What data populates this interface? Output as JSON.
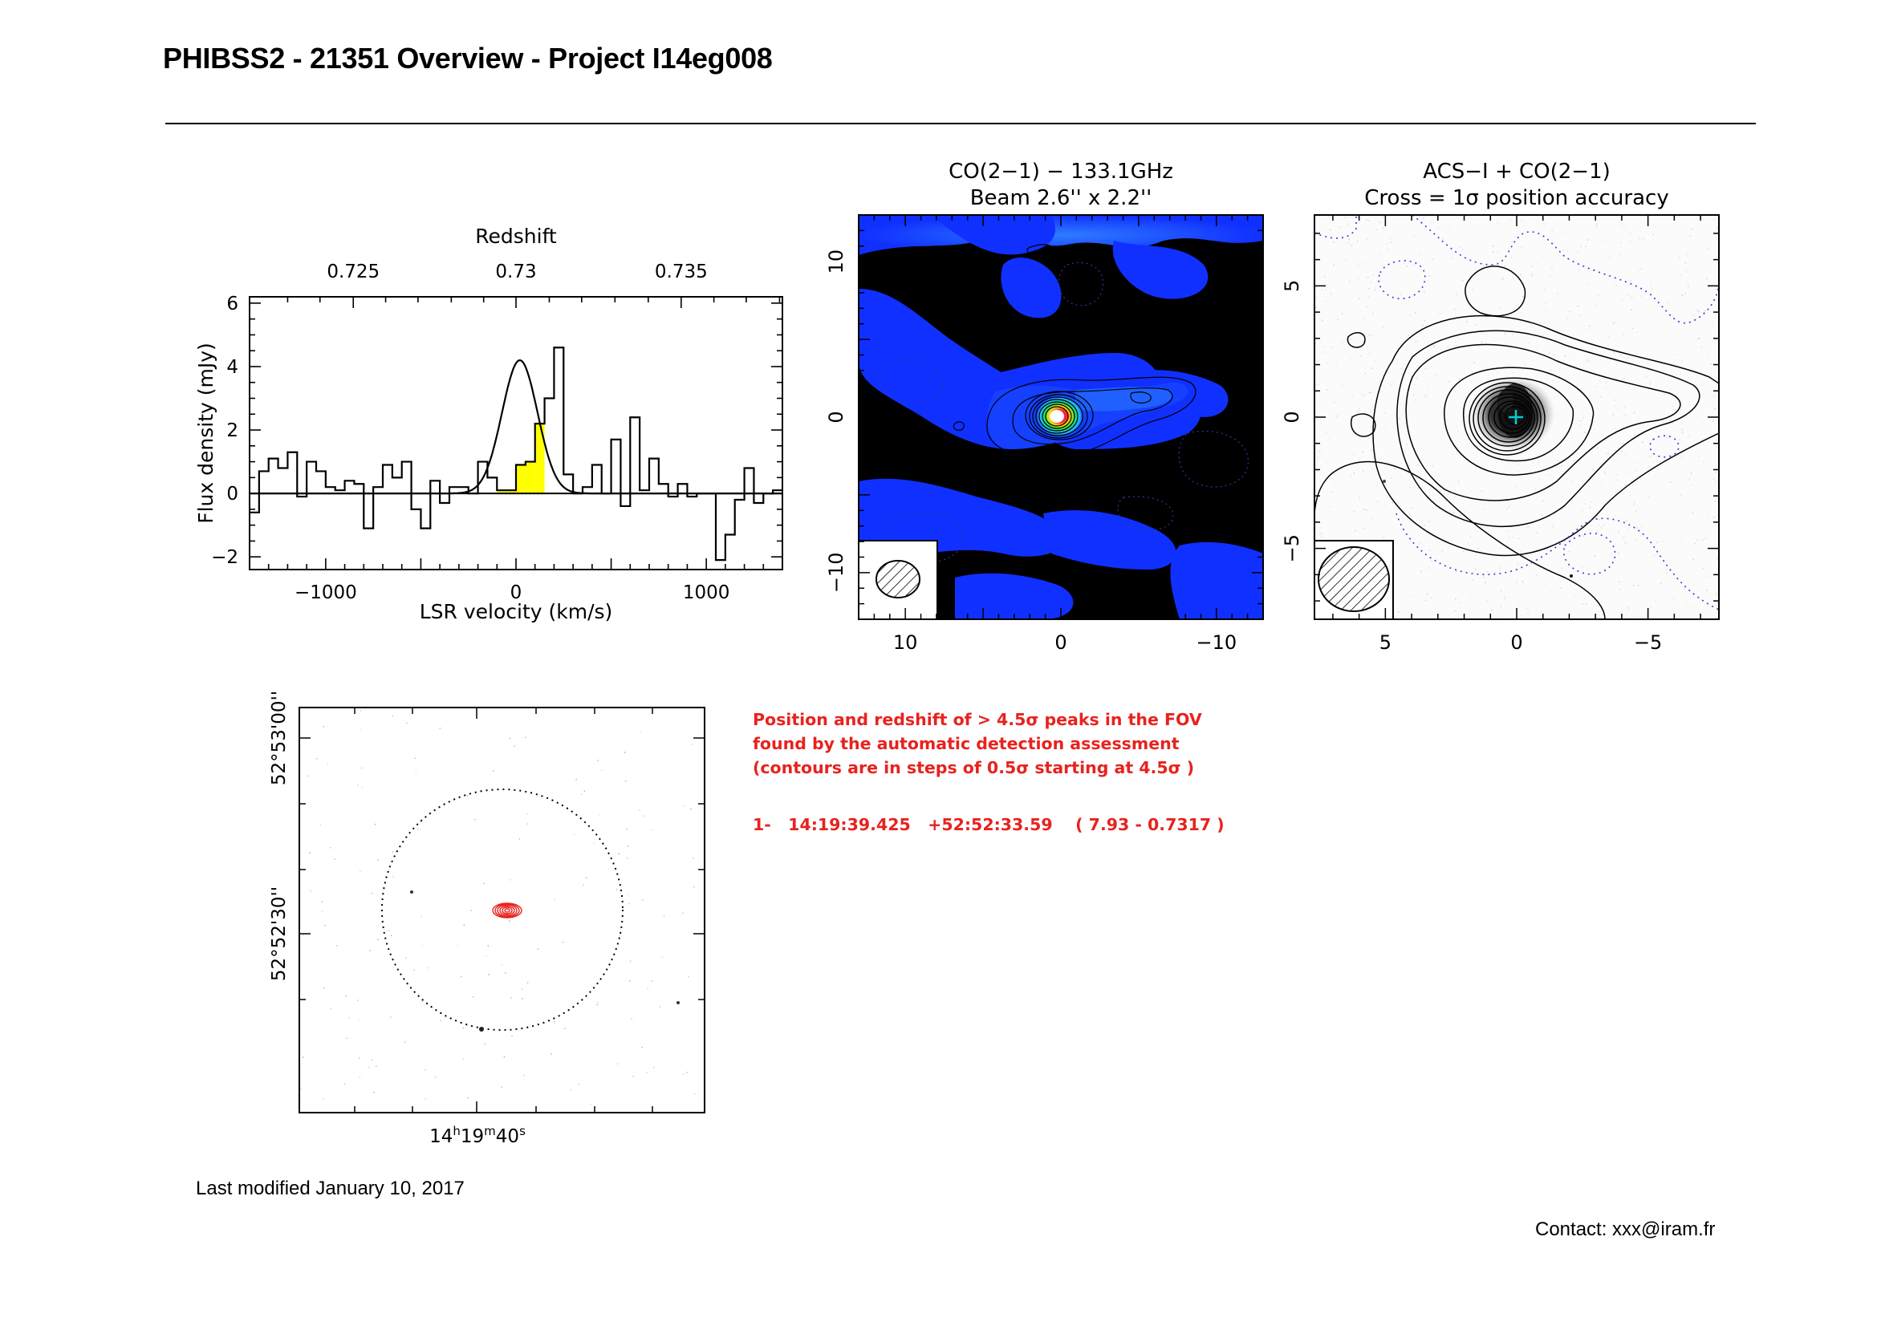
{
  "header": {
    "title": "PHIBSS2 - 21351 Overview - Project I14eg008"
  },
  "footer": {
    "modified": "Last modified January 10, 2017",
    "contact": "Contact: xxx@iram.fr"
  },
  "detection": {
    "notes": [
      "Position and redshift of > 4.5σ peaks in the FOV",
      "found by the automatic detection assessment",
      "(contours are in steps of 0.5σ starting at 4.5σ )"
    ],
    "row": "1-   14:19:39.425   +52:52:33.59    ( 7.93 - 0.7317 )"
  },
  "colors": {
    "fit_fill": "#ffff00",
    "detection_text": "#e8221e",
    "map_background": "#000000",
    "map_blue": "#1030ff",
    "negative_contour": "#3a3ad0",
    "cross": "#00d0d0"
  },
  "chart_data": [
    {
      "type": "line",
      "subtype": "step-spectrum",
      "title": "Redshift",
      "xlabel": "LSR velocity (km/s)",
      "ylabel": "Flux density (mJy)",
      "xlim": [
        -1400,
        1400
      ],
      "ylim": [
        -2.4,
        6.2
      ],
      "x_ticks": [
        -1000,
        0,
        1000
      ],
      "x_tick_labels": [
        "−1000",
        "0",
        "1000"
      ],
      "y_ticks": [
        -2,
        0,
        2,
        4,
        6
      ],
      "y_tick_labels": [
        "−2",
        "0",
        "2",
        "4",
        "6"
      ],
      "top_axis": {
        "label": "Redshift",
        "ticks": [
          -855,
          0,
          868
        ],
        "tick_labels": [
          "0.725",
          "0.73",
          "0.735"
        ]
      },
      "channel_width": 50,
      "x_start": -1400,
      "values": [
        -0.6,
        0.7,
        1.1,
        0.8,
        1.3,
        -0.1,
        1.0,
        0.7,
        0.2,
        0.1,
        0.4,
        0.3,
        -1.1,
        0.2,
        0.9,
        0.5,
        1.0,
        -0.5,
        -1.1,
        0.4,
        -0.3,
        0.2,
        0.2,
        0.0,
        1.0,
        0.5,
        0.1,
        0.1,
        0.9,
        1.0,
        2.2,
        3.0,
        4.6,
        0.6,
        0.0,
        0.2,
        0.9,
        0.0,
        1.7,
        -0.4,
        2.4,
        0.1,
        1.1,
        0.3,
        -0.1,
        0.3,
        -0.1,
        0.0,
        0.0,
        -2.1,
        -1.3,
        -0.2,
        0.8,
        -0.3,
        0.0,
        0.1
      ],
      "highlight_range": [
        -100,
        150
      ],
      "gaussian_fit": {
        "amplitude": 4.2,
        "center": 20,
        "fwhm": 220
      }
    },
    {
      "type": "heatmap",
      "title": "CO(2−1) − 133.1GHz",
      "subtitle": "Beam 2.6'' x 2.2''",
      "xlim": [
        13,
        -13
      ],
      "ylim": [
        -13,
        13
      ],
      "x_ticks": [
        10,
        0,
        -10
      ],
      "y_ticks": [
        10,
        0,
        -10
      ],
      "x_tick_labels": [
        "10",
        "0",
        "−10"
      ],
      "y_tick_labels": [
        "10",
        "0",
        "−10"
      ],
      "peak": [
        0,
        0
      ],
      "beam_arcsec": [
        2.6,
        2.2
      ]
    },
    {
      "type": "heatmap",
      "title": "ACS−I + CO(2−1)",
      "subtitle": "Cross = 1σ position accuracy",
      "xlim": [
        7.7,
        -7.7
      ],
      "ylim": [
        -7.7,
        7.7
      ],
      "x_ticks": [
        5,
        0,
        -5
      ],
      "y_ticks": [
        5,
        0,
        -5
      ],
      "x_tick_labels": [
        "5",
        "0",
        "−5"
      ],
      "y_tick_labels": [
        "5",
        "0",
        "−5"
      ],
      "cross": [
        0,
        0
      ]
    },
    {
      "type": "heatmap",
      "title": "",
      "ra_label": "14h19m40s",
      "ra_parts": [
        "14",
        "h",
        "19",
        "m",
        "40",
        "s"
      ],
      "dec_labels": [
        "52°53'00''",
        "52°52'30''"
      ],
      "fov_circle": true,
      "detection_marker": "red contours"
    }
  ]
}
